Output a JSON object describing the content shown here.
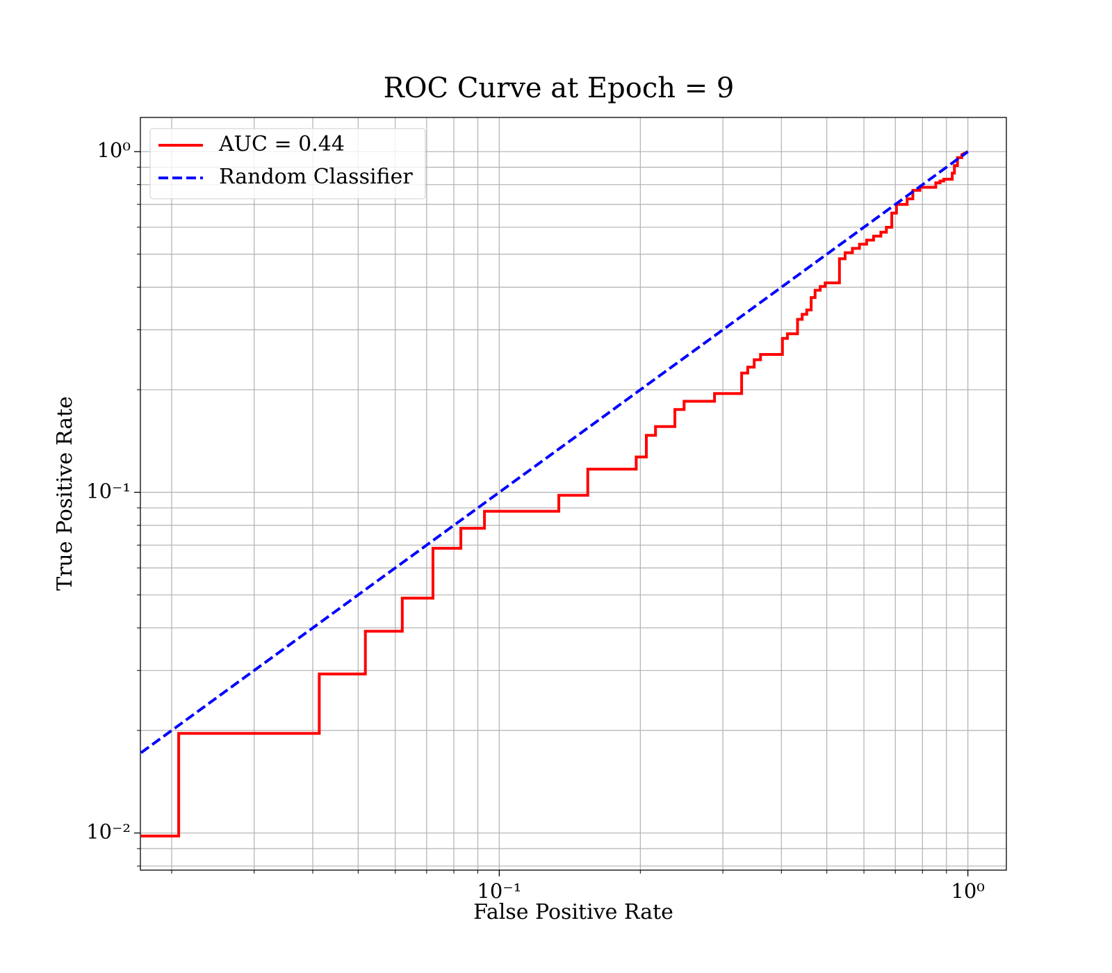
{
  "chart_data": {
    "type": "line",
    "title": "ROC Curve at Epoch = 9",
    "x_label": "False Positive Rate",
    "y_label": "True Positive Rate",
    "log_x": true,
    "log_y": true,
    "grid": true,
    "legend": "upper left",
    "xlim": [
      0.01715,
      1.208
    ],
    "ylim": [
      0.00778,
      1.26
    ],
    "xticks": [
      {
        "value": 0.1,
        "label": "10⁻¹"
      },
      {
        "value": 1,
        "label": "10⁰"
      }
    ],
    "yticks": [
      {
        "value": 0.01,
        "label": "10⁻²"
      },
      {
        "value": 0.1,
        "label": "10⁻¹"
      },
      {
        "value": 1,
        "label": "10⁰"
      }
    ],
    "xminor": [
      0.02,
      0.03,
      0.04,
      0.05,
      0.06,
      0.07,
      0.08,
      0.09,
      0.2,
      0.3,
      0.4,
      0.5,
      0.6,
      0.7,
      0.8,
      0.9
    ],
    "yminor": [
      0.008,
      0.009,
      0.02,
      0.03,
      0.04,
      0.05,
      0.06,
      0.07,
      0.08,
      0.09,
      0.2,
      0.3,
      0.4,
      0.5,
      0.6,
      0.7,
      0.8,
      0.9
    ],
    "series": [
      {
        "name": "AUC = 0.44",
        "color": "#ff0000",
        "style": "solid",
        "x": [
          0.0172,
          0.0207,
          0.0207,
          0.0413,
          0.0413,
          0.0518,
          0.0518,
          0.0621,
          0.0621,
          0.0722,
          0.0722,
          0.0828,
          0.0828,
          0.093,
          0.093,
          0.134,
          0.134,
          0.1545,
          0.1545,
          0.196,
          0.196,
          0.206,
          0.206,
          0.2155,
          0.2155,
          0.237,
          0.237,
          0.248,
          0.248,
          0.288,
          0.288,
          0.329,
          0.329,
          0.339,
          0.339,
          0.35,
          0.35,
          0.361,
          0.361,
          0.402,
          0.402,
          0.412,
          0.412,
          0.433,
          0.433,
          0.443,
          0.443,
          0.453,
          0.453,
          0.463,
          0.463,
          0.472,
          0.472,
          0.484,
          0.484,
          0.496,
          0.496,
          0.532,
          0.532,
          0.547,
          0.547,
          0.567,
          0.567,
          0.587,
          0.587,
          0.608,
          0.608,
          0.629,
          0.629,
          0.652,
          0.652,
          0.67,
          0.67,
          0.688,
          0.688,
          0.704,
          0.704,
          0.742,
          0.742,
          0.763,
          0.763,
          0.79,
          0.79,
          0.854,
          0.854,
          0.872,
          0.872,
          0.888,
          0.888,
          0.926,
          0.926,
          0.936,
          0.936,
          0.95,
          0.95,
          0.97,
          0.97,
          1
        ],
        "values": [
          0.0098,
          0.0098,
          0.0196,
          0.0196,
          0.0293,
          0.0293,
          0.0391,
          0.0391,
          0.0489,
          0.0489,
          0.0685,
          0.0685,
          0.0784,
          0.0784,
          0.088,
          0.088,
          0.098,
          0.098,
          0.117,
          0.117,
          0.127,
          0.127,
          0.147,
          0.147,
          0.156,
          0.156,
          0.175,
          0.175,
          0.185,
          0.185,
          0.195,
          0.195,
          0.224,
          0.224,
          0.233,
          0.233,
          0.245,
          0.245,
          0.254,
          0.254,
          0.283,
          0.283,
          0.292,
          0.292,
          0.322,
          0.322,
          0.333,
          0.333,
          0.343,
          0.343,
          0.373,
          0.373,
          0.392,
          0.392,
          0.402,
          0.402,
          0.412,
          0.412,
          0.485,
          0.485,
          0.505,
          0.505,
          0.52,
          0.52,
          0.535,
          0.535,
          0.55,
          0.55,
          0.565,
          0.565,
          0.58,
          0.58,
          0.6,
          0.6,
          0.66,
          0.66,
          0.7,
          0.7,
          0.727,
          0.727,
          0.77,
          0.77,
          0.786,
          0.786,
          0.81,
          0.81,
          0.82,
          0.82,
          0.83,
          0.83,
          0.865,
          0.865,
          0.91,
          0.91,
          0.96,
          0.96,
          0.98,
          1
        ]
      },
      {
        "name": "Random Classifier",
        "color": "#0000ff",
        "style": "dashed",
        "x": [
          0.0172,
          1
        ],
        "values": [
          0.0172,
          1
        ]
      }
    ]
  }
}
